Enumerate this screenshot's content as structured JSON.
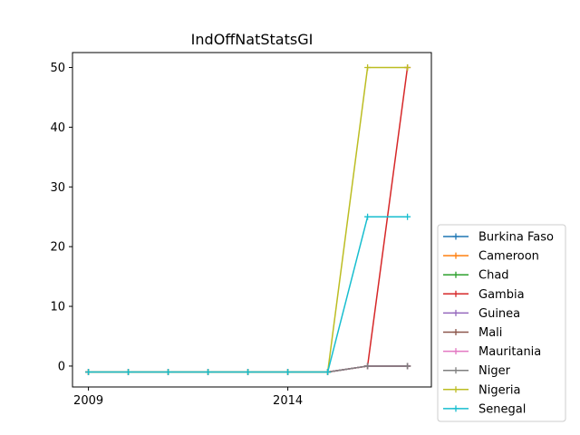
{
  "chart_data": {
    "type": "line",
    "title": "IndOffNatStatsGI",
    "xlabel": "",
    "ylabel": "",
    "x": [
      2009,
      2010,
      2011,
      2012,
      2013,
      2014,
      2015,
      2016,
      2017
    ],
    "xlim": [
      2008.6,
      2017.6
    ],
    "ylim": [
      -3.5,
      52.5
    ],
    "xticks": [
      2009,
      2014
    ],
    "yticks": [
      0,
      10,
      20,
      30,
      40,
      50
    ],
    "grid": false,
    "legend_position": "bottom-right, outside plot",
    "series": [
      {
        "name": "Burkina Faso",
        "color": "#1f77b4",
        "values": [
          -1,
          -1,
          -1,
          -1,
          -1,
          -1,
          -1,
          0,
          0
        ]
      },
      {
        "name": "Cameroon",
        "color": "#ff7f0e",
        "values": [
          -1,
          -1,
          -1,
          -1,
          -1,
          -1,
          -1,
          0,
          0
        ]
      },
      {
        "name": "Chad",
        "color": "#2ca02c",
        "values": [
          -1,
          -1,
          -1,
          -1,
          -1,
          -1,
          -1,
          0,
          0
        ]
      },
      {
        "name": "Gambia",
        "color": "#d62728",
        "values": [
          -1,
          -1,
          -1,
          -1,
          -1,
          -1,
          -1,
          0,
          50
        ]
      },
      {
        "name": "Guinea",
        "color": "#9467bd",
        "values": [
          -1,
          -1,
          -1,
          -1,
          -1,
          -1,
          -1,
          0,
          0
        ]
      },
      {
        "name": "Mali",
        "color": "#8c564b",
        "values": [
          -1,
          -1,
          -1,
          -1,
          -1,
          -1,
          -1,
          0,
          0
        ]
      },
      {
        "name": "Mauritania",
        "color": "#e377c2",
        "values": [
          -1,
          -1,
          -1,
          -1,
          -1,
          -1,
          -1,
          0,
          0
        ]
      },
      {
        "name": "Niger",
        "color": "#7f7f7f",
        "values": [
          -1,
          -1,
          -1,
          -1,
          -1,
          -1,
          -1,
          0,
          0
        ]
      },
      {
        "name": "Nigeria",
        "color": "#bcbd22",
        "values": [
          -1,
          -1,
          -1,
          -1,
          -1,
          -1,
          -1,
          50,
          50
        ]
      },
      {
        "name": "Senegal",
        "color": "#17becf",
        "values": [
          -1,
          -1,
          -1,
          -1,
          -1,
          -1,
          -1,
          25,
          25
        ]
      }
    ]
  }
}
